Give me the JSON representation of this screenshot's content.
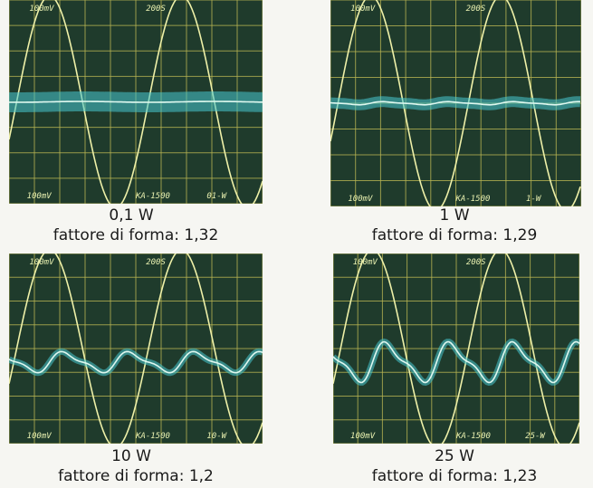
{
  "panels": [
    {
      "power": "0,1 W",
      "form_factor": "fattore di forma: 1,32",
      "screen": {
        "top_left": "100mV",
        "top_mid": "200S",
        "bottom_left": "100mV",
        "bottom_mid": "KA-1500",
        "bottom_right": "01-W"
      }
    },
    {
      "power": "1 W",
      "form_factor": "fattore di forma: 1,29",
      "screen": {
        "top_left": "100mV",
        "top_mid": "200S",
        "bottom_left": "100mV",
        "bottom_mid": "KA-1500",
        "bottom_right": "1-W"
      }
    },
    {
      "power": "10 W",
      "form_factor": "fattore di forma: 1,2",
      "screen": {
        "top_left": "100mV",
        "top_mid": "200S",
        "bottom_left": "100mV",
        "bottom_mid": "KA-1500",
        "bottom_right": "10-W"
      }
    },
    {
      "power": "25 W",
      "form_factor": "fattore di forma: 1,23",
      "screen": {
        "top_left": "100mV",
        "top_mid": "200S",
        "bottom_left": "100mV",
        "bottom_mid": "KA-1500",
        "bottom_right": "25-W"
      }
    }
  ]
}
